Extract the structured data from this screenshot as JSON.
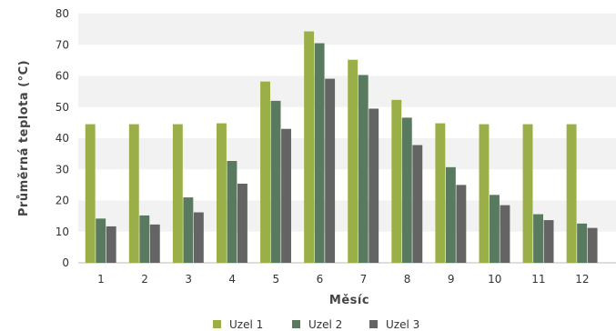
{
  "chart_data": {
    "type": "bar",
    "categories": [
      "1",
      "2",
      "3",
      "4",
      "5",
      "6",
      "7",
      "8",
      "9",
      "10",
      "11",
      "12"
    ],
    "series": [
      {
        "name": "Uzel 1",
        "color": "#9aaf48",
        "values": [
          44.5,
          44.5,
          44.5,
          44.8,
          58.2,
          74.3,
          65.2,
          52.3,
          44.8,
          44.5,
          44.5,
          44.5
        ]
      },
      {
        "name": "Uzel 2",
        "color": "#597a5e",
        "values": [
          14.2,
          15.2,
          21.0,
          32.7,
          52.0,
          70.5,
          60.3,
          46.6,
          30.7,
          21.8,
          15.6,
          12.6
        ]
      },
      {
        "name": "Uzel 3",
        "color": "#646464",
        "values": [
          11.7,
          12.3,
          16.2,
          25.4,
          43.0,
          59.1,
          49.5,
          37.8,
          25.0,
          18.5,
          13.7,
          11.2
        ]
      }
    ],
    "xlabel": "Měsíc",
    "ylabel": "Průměrná teplota (°C)",
    "ylim": [
      0,
      80
    ],
    "yticks": [
      0,
      10,
      20,
      30,
      40,
      50,
      60,
      70,
      80
    ],
    "grid": true,
    "grid_style": "alternating horizontal bands",
    "legend_position": "bottom"
  }
}
